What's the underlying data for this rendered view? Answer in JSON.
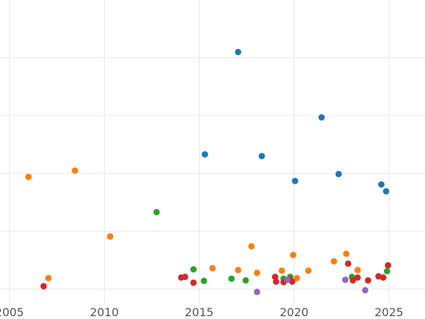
{
  "chart_data": {
    "type": "scatter",
    "title": "",
    "xlabel": "",
    "ylabel": "",
    "grid": true,
    "xlim": [
      2004.5,
      2026.9
    ],
    "ylim": [
      -0.15,
      5.0
    ],
    "x_ticks": [
      2005,
      2010,
      2015,
      2020,
      2025
    ],
    "x_tick_labels": [
      "2005",
      "2010",
      "2015",
      "2020",
      "2025"
    ],
    "y_grid_values": [
      0,
      1,
      2,
      3,
      4
    ],
    "colors": {
      "blue": "#1f77b4",
      "orange": "#ff7f0e",
      "green": "#2ca02c",
      "red": "#d62728",
      "purple": "#9467bd"
    },
    "series": [
      {
        "color": "#1f77b4",
        "points": [
          {
            "x": 2017.05,
            "y": 4.1
          },
          {
            "x": 2021.45,
            "y": 2.97
          },
          {
            "x": 2015.3,
            "y": 2.33
          },
          {
            "x": 2018.3,
            "y": 2.3
          },
          {
            "x": 2022.35,
            "y": 1.99
          },
          {
            "x": 2020.05,
            "y": 1.87
          },
          {
            "x": 2024.6,
            "y": 1.81
          },
          {
            "x": 2024.85,
            "y": 1.69
          }
        ]
      },
      {
        "color": "#ff7f0e",
        "points": [
          {
            "x": 2006.0,
            "y": 1.94
          },
          {
            "x": 2008.45,
            "y": 2.05
          },
          {
            "x": 2010.3,
            "y": 0.91
          },
          {
            "x": 2017.75,
            "y": 0.74
          },
          {
            "x": 2007.05,
            "y": 0.19
          },
          {
            "x": 2015.7,
            "y": 0.36
          },
          {
            "x": 2017.05,
            "y": 0.33
          },
          {
            "x": 2018.05,
            "y": 0.28
          },
          {
            "x": 2019.35,
            "y": 0.32
          },
          {
            "x": 2019.95,
            "y": 0.59
          },
          {
            "x": 2020.15,
            "y": 0.19
          },
          {
            "x": 2020.75,
            "y": 0.32
          },
          {
            "x": 2022.1,
            "y": 0.48
          },
          {
            "x": 2022.75,
            "y": 0.61
          },
          {
            "x": 2023.35,
            "y": 0.33
          }
        ]
      },
      {
        "color": "#2ca02c",
        "points": [
          {
            "x": 2012.75,
            "y": 1.33
          },
          {
            "x": 2014.7,
            "y": 0.34
          },
          {
            "x": 2015.25,
            "y": 0.14
          },
          {
            "x": 2016.7,
            "y": 0.18
          },
          {
            "x": 2017.45,
            "y": 0.15
          },
          {
            "x": 2019.45,
            "y": 0.18
          },
          {
            "x": 2019.8,
            "y": 0.21
          },
          {
            "x": 2023.05,
            "y": 0.21
          },
          {
            "x": 2024.9,
            "y": 0.31
          }
        ]
      },
      {
        "color": "#d62728",
        "points": [
          {
            "x": 2006.8,
            "y": 0.05
          },
          {
            "x": 2014.05,
            "y": 0.2
          },
          {
            "x": 2014.25,
            "y": 0.21
          },
          {
            "x": 2014.7,
            "y": 0.11
          },
          {
            "x": 2019.0,
            "y": 0.21
          },
          {
            "x": 2019.05,
            "y": 0.13
          },
          {
            "x": 2019.45,
            "y": 0.12
          },
          {
            "x": 2019.75,
            "y": 0.17
          },
          {
            "x": 2019.9,
            "y": 0.13
          },
          {
            "x": 2022.85,
            "y": 0.44
          },
          {
            "x": 2023.1,
            "y": 0.15
          },
          {
            "x": 2023.35,
            "y": 0.2
          },
          {
            "x": 2023.9,
            "y": 0.15
          },
          {
            "x": 2024.45,
            "y": 0.22
          },
          {
            "x": 2024.7,
            "y": 0.2
          },
          {
            "x": 2024.95,
            "y": 0.41
          }
        ]
      },
      {
        "color": "#9467bd",
        "points": [
          {
            "x": 2018.05,
            "y": -0.05
          },
          {
            "x": 2019.65,
            "y": 0.16
          },
          {
            "x": 2022.7,
            "y": 0.16
          },
          {
            "x": 2023.75,
            "y": -0.02
          }
        ]
      }
    ]
  }
}
